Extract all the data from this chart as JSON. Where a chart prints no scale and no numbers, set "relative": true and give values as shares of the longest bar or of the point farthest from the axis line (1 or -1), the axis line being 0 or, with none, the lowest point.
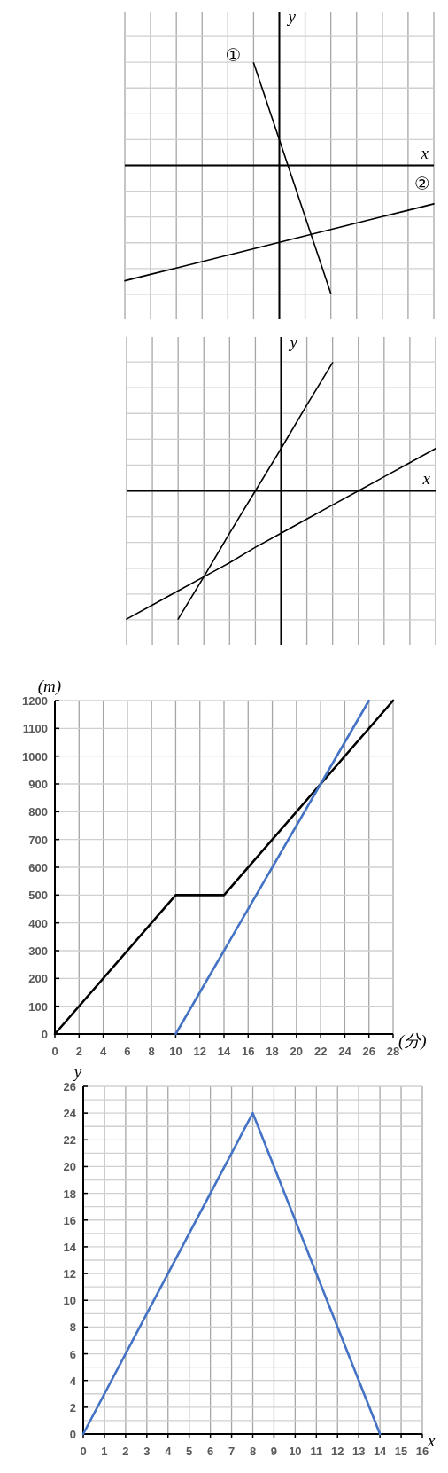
{
  "chart_data": [
    {
      "type": "line",
      "relative": true,
      "grid": true,
      "xlabel": "x",
      "ylabel": "y",
      "categories": [
        null,
        null,
        null,
        null,
        null,
        null,
        null,
        null,
        null,
        null,
        null,
        null,
        null
      ],
      "series": [
        {
          "name": "①",
          "color": "#000000",
          "values": [
            null,
            null,
            null,
            null,
            null,
            0.8,
            0.2,
            -0.4,
            -1,
            null,
            null,
            null,
            null
          ]
        },
        {
          "name": "②",
          "color": "#000000",
          "values": [
            -0.9,
            -0.85,
            -0.8,
            -0.75,
            -0.7,
            -0.65,
            -0.6,
            -0.55,
            -0.5,
            -0.45,
            -0.4,
            -0.35,
            -0.3
          ]
        }
      ]
    },
    {
      "type": "line",
      "relative": true,
      "grid": true,
      "xlabel": "x",
      "ylabel": "y",
      "categories": [
        null,
        null,
        null,
        null,
        null,
        null,
        null,
        null,
        null,
        null,
        null,
        null,
        null
      ],
      "series": [
        {
          "color": "#000000",
          "values": [
            null,
            null,
            -1,
            -0.67,
            -0.33,
            0,
            0.33,
            0.67,
            1,
            null,
            null,
            null,
            null
          ]
        },
        {
          "color": "#000000",
          "values": [
            -1,
            -0.89,
            -0.78,
            -0.67,
            -0.56,
            -0.44,
            -0.33,
            -0.22,
            -0.11,
            0,
            0.11,
            0.22,
            0.33
          ]
        }
      ]
    },
    {
      "type": "line",
      "grid": true,
      "xlabel": "(分)",
      "ylabel": "(m)",
      "xlim": [
        0,
        28
      ],
      "ylim": [
        0,
        1200
      ],
      "xticks": [
        0,
        2,
        4,
        6,
        8,
        10,
        12,
        14,
        16,
        18,
        20,
        22,
        24,
        26,
        28
      ],
      "yticks": [
        0,
        100,
        200,
        300,
        400,
        500,
        600,
        700,
        800,
        900,
        1000,
        1100,
        1200
      ],
      "series": [
        {
          "color": "#000000",
          "x": [
            0,
            10,
            14,
            28
          ],
          "values": [
            0,
            500,
            500,
            1200
          ]
        },
        {
          "color": "#4472c4",
          "x": [
            10,
            26
          ],
          "values": [
            0,
            1200
          ]
        }
      ]
    },
    {
      "type": "line",
      "grid": true,
      "xlabel": "x",
      "ylabel": "y",
      "xlim": [
        0,
        16
      ],
      "ylim": [
        0,
        26
      ],
      "xticks": [
        0,
        1,
        2,
        3,
        4,
        5,
        6,
        7,
        8,
        9,
        10,
        11,
        12,
        13,
        14,
        15,
        16
      ],
      "yticks": [
        0,
        {
          "value": 1,
          "label": null
        },
        2,
        {
          "value": 3,
          "label": null
        },
        4,
        {
          "value": 5,
          "label": null
        },
        6,
        {
          "value": 7,
          "label": null
        },
        8,
        {
          "value": 9,
          "label": null
        },
        10,
        {
          "value": 11,
          "label": null
        },
        12,
        {
          "value": 13,
          "label": null
        },
        14,
        {
          "value": 15,
          "label": null
        },
        16,
        {
          "value": 17,
          "label": null
        },
        18,
        {
          "value": 19,
          "label": null
        },
        20,
        {
          "value": 21,
          "label": null
        },
        22,
        {
          "value": 23,
          "label": null
        },
        24,
        {
          "value": 25,
          "label": null
        },
        26
      ],
      "series": [
        {
          "color": "#4472c4",
          "x": [
            0,
            8,
            14
          ],
          "values": [
            0,
            24,
            0
          ]
        }
      ]
    }
  ]
}
